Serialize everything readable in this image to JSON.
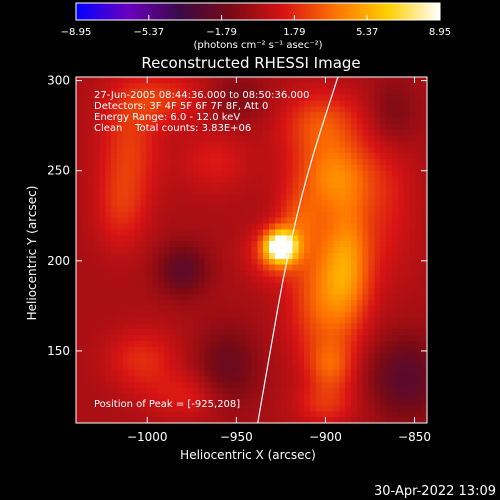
{
  "chart_data": {
    "type": "heatmap",
    "title": "Reconstructed RHESSI Image",
    "xlabel": "Heliocentric X (arcsec)",
    "ylabel": "Heliocentric Y (arcsec)",
    "xlim": [
      -1040,
      -843
    ],
    "ylim": [
      110,
      302
    ],
    "x_ticks": [
      -1000,
      -950,
      -900,
      -850
    ],
    "y_ticks": [
      150,
      200,
      250,
      300
    ],
    "x_tick_labels": [
      "−1000",
      "−950",
      "−900",
      "−850"
    ],
    "y_tick_labels": [
      "150",
      "200",
      "250",
      "300"
    ],
    "colorbar": {
      "min": -8.95,
      "max": 8.95,
      "ticks": [
        -8.95,
        -5.37,
        -1.79,
        1.79,
        5.37,
        8.95
      ],
      "tick_labels": [
        "−8.95",
        "−5.37",
        "−1.79",
        "1.79",
        "5.37",
        "8.95"
      ],
      "units": "(photons cm⁻² s⁻¹ asec⁻²)",
      "colormap": [
        "#0000ff",
        "#6a00c0",
        "#3a0a46",
        "#7a0a14",
        "#d81414",
        "#ff7400",
        "#ffd000",
        "#ffffff"
      ]
    },
    "annotations": [
      "27-Jun-2005 08:44:36.000 to 08:50:36.000",
      "Detectors: 3F 4F 5F 6F 7F 8F, Att 0",
      "Energy Range: 6.0 - 12.0 keV",
      "Clean    Total counts: 3.83E+06"
    ],
    "peak_label": "Position of Peak = [-925,208]",
    "peak": [
      -925,
      208
    ],
    "limb_curve": [
      [
        -938,
        110
      ],
      [
        -931,
        150
      ],
      [
        -922,
        200
      ],
      [
        -910,
        250
      ],
      [
        -893,
        302
      ]
    ],
    "sources": [
      {
        "x": -925,
        "y": 208,
        "sx": 6,
        "sy": 6,
        "amp": 8.95
      },
      {
        "x": -928,
        "y": 204,
        "sx": 11,
        "sy": 10,
        "amp": 2.6
      },
      {
        "x": -888,
        "y": 200,
        "sx": 10,
        "sy": 26,
        "amp": 4.2
      },
      {
        "x": -903,
        "y": 178,
        "sx": 13,
        "sy": 24,
        "amp": 3.0
      },
      {
        "x": -896,
        "y": 247,
        "sx": 16,
        "sy": 14,
        "amp": 3.6
      },
      {
        "x": -902,
        "y": 276,
        "sx": 16,
        "sy": 13,
        "amp": 2.8
      },
      {
        "x": -914,
        "y": 222,
        "sx": 9,
        "sy": 12,
        "amp": 2.4
      },
      {
        "x": -897,
        "y": 141,
        "sx": 9,
        "sy": 10,
        "amp": 2.5
      },
      {
        "x": -900,
        "y": 120,
        "sx": 12,
        "sy": 8,
        "amp": 1.8
      },
      {
        "x": -865,
        "y": 230,
        "sx": 12,
        "sy": 30,
        "amp": 1.3
      },
      {
        "x": -1010,
        "y": 262,
        "sx": 12,
        "sy": 22,
        "amp": 2.2
      },
      {
        "x": -992,
        "y": 290,
        "sx": 18,
        "sy": 10,
        "amp": 2.0
      },
      {
        "x": -1015,
        "y": 228,
        "sx": 10,
        "sy": 16,
        "amp": 1.6
      },
      {
        "x": -962,
        "y": 255,
        "sx": 14,
        "sy": 12,
        "amp": 1.4
      },
      {
        "x": -1003,
        "y": 145,
        "sx": 14,
        "sy": 12,
        "amp": 1.9
      },
      {
        "x": -977,
        "y": 125,
        "sx": 16,
        "sy": 9,
        "amp": 1.5
      },
      {
        "x": -955,
        "y": 140,
        "sx": 12,
        "sy": 16,
        "amp": -2.0
      },
      {
        "x": -980,
        "y": 195,
        "sx": 10,
        "sy": 10,
        "amp": -2.4
      },
      {
        "x": -950,
        "y": 290,
        "sx": 12,
        "sy": 10,
        "amp": -1.2
      },
      {
        "x": -855,
        "y": 135,
        "sx": 14,
        "sy": 16,
        "amp": -2.6
      },
      {
        "x": -862,
        "y": 282,
        "sx": 10,
        "sy": 14,
        "amp": -1.4
      }
    ]
  },
  "footer": {
    "timestamp": "30-Apr-2022 13:09"
  }
}
